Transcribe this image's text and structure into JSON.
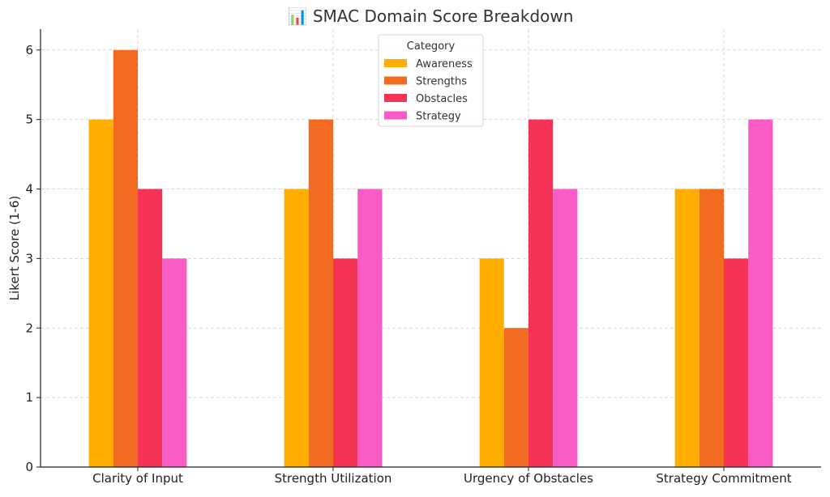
{
  "chart_data": {
    "type": "bar",
    "title": "📊 SMAC Domain Score Breakdown",
    "xlabel": "",
    "ylabel": "Likert Score (1-6)",
    "ylim": [
      0,
      6.3
    ],
    "yticks": [
      "0",
      "1",
      "2",
      "3",
      "4",
      "5",
      "6"
    ],
    "grid": true,
    "categories": [
      "Clarity of Input",
      "Strength Utilization",
      "Urgency of Obstacles",
      "Strategy Commitment"
    ],
    "legend": {
      "title": "Category",
      "placement": "top-center"
    },
    "series": [
      {
        "name": "Awareness",
        "color": "#FFAE00",
        "values": [
          5,
          4,
          3,
          4
        ]
      },
      {
        "name": "Strengths",
        "color": "#F26B21",
        "values": [
          6,
          5,
          2,
          4
        ]
      },
      {
        "name": "Obstacles",
        "color": "#F53356",
        "values": [
          4,
          3,
          5,
          3
        ]
      },
      {
        "name": "Strategy",
        "color": "#FA5BC4",
        "values": [
          3,
          4,
          4,
          5
        ]
      }
    ]
  }
}
